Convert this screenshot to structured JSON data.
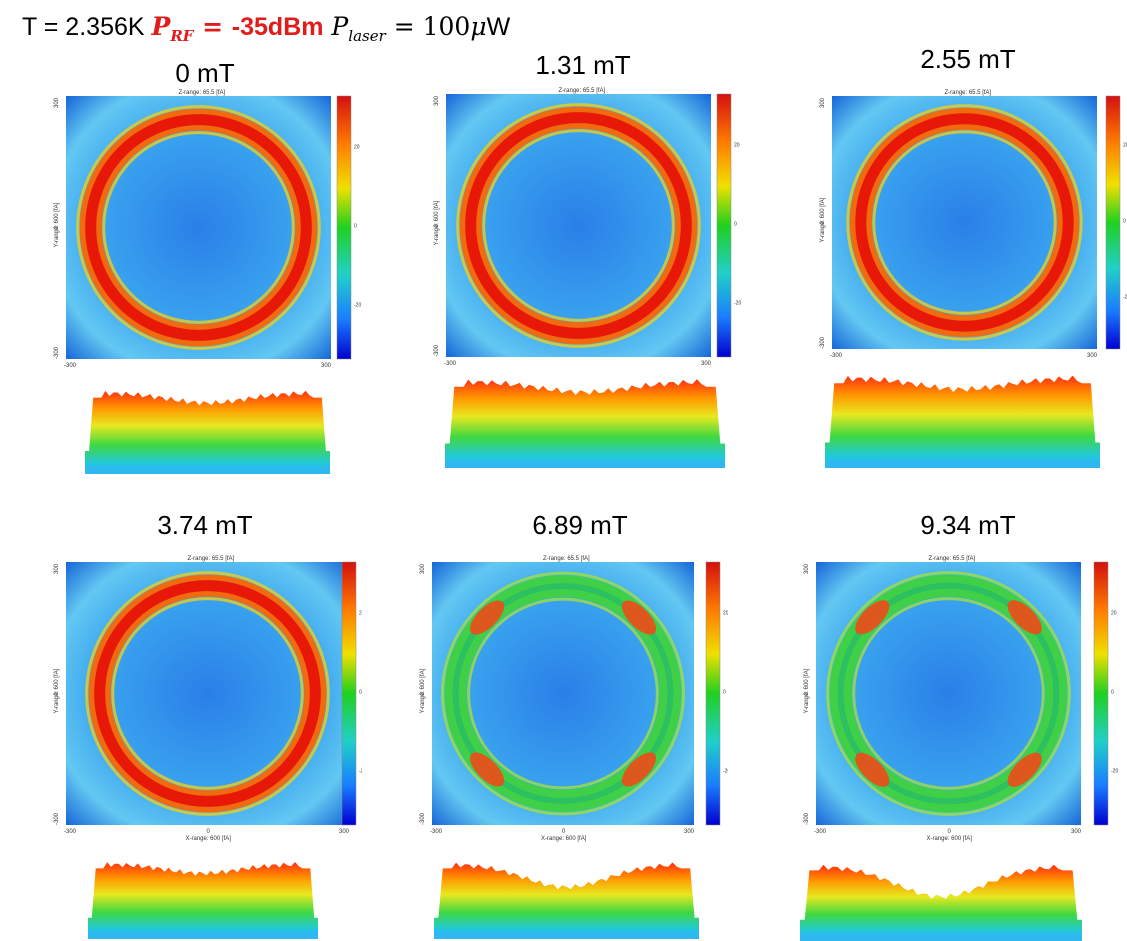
{
  "header": {
    "t_label": "T = 2.356K ",
    "prf_p": "P",
    "prf_sub": "RF",
    "prf_eq": " = ",
    "prf_val": "-35dBm",
    "plaser_p": " P",
    "plaser_sub": "laser",
    "plaser_eq": " = 100",
    "plaser_mu": "μ",
    "plaser_unit": "W"
  },
  "colors": {
    "low": "#0000ff",
    "mid": "#00ff00",
    "high": "#ff0000"
  },
  "axis_labels": {
    "z_range": "Z-range: 65.5 [fA]",
    "y_range": "Y-range: 600 [fA]",
    "x_range": "X-range: 600 [fA]",
    "tick_top": "300",
    "tick_mid": "0",
    "tick_bot": "-300",
    "cb_top": "20",
    "cb_mid": "0",
    "cb_bot": "-20"
  },
  "fields": [
    {
      "label": "0 mT",
      "field_mT": 0,
      "x_axis_shown": false,
      "z_axis_shown": true
    },
    {
      "label": "1.31 mT",
      "field_mT": 1.31,
      "x_axis_shown": false,
      "z_axis_shown": true
    },
    {
      "label": "2.55 mT",
      "field_mT": 2.55,
      "x_axis_shown": false,
      "z_axis_shown": true
    },
    {
      "label": "3.74 mT",
      "field_mT": 3.74,
      "x_axis_shown": true,
      "z_axis_shown": true
    },
    {
      "label": "6.89 mT",
      "field_mT": 6.89,
      "x_axis_shown": true,
      "z_axis_shown": true
    },
    {
      "label": "9.34 mT",
      "field_mT": 9.34,
      "x_axis_shown": true,
      "z_axis_shown": true
    }
  ]
}
